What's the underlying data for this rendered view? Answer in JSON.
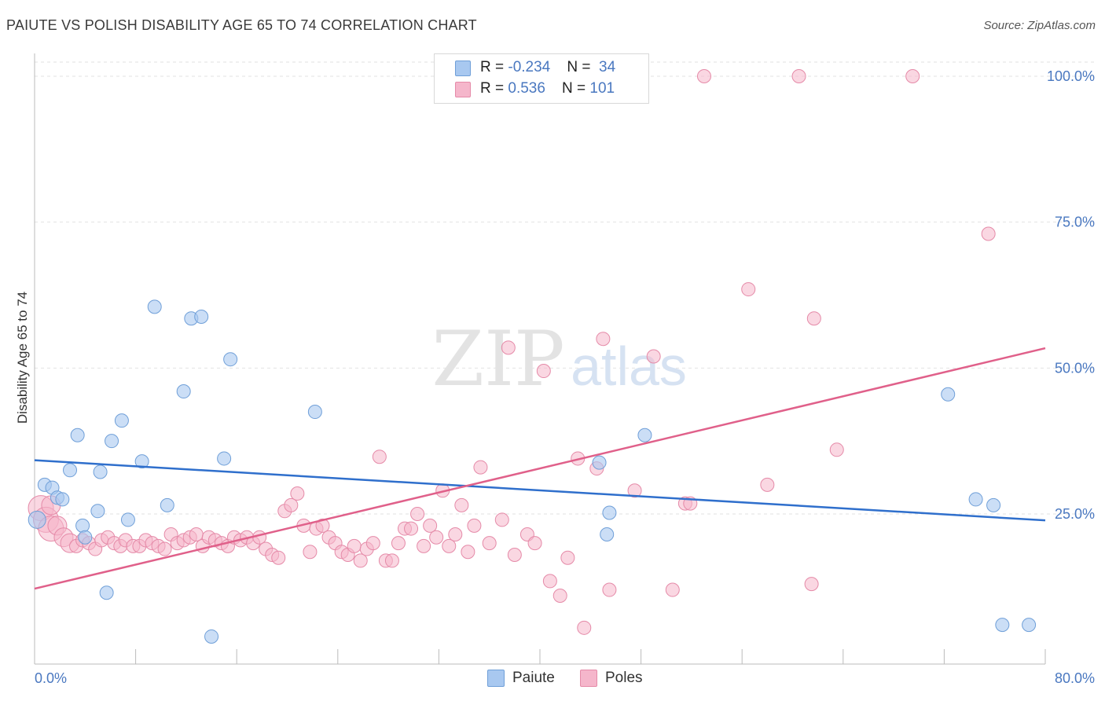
{
  "header": {
    "title": "PAIUTE VS POLISH DISABILITY AGE 65 TO 74 CORRELATION CHART",
    "source": "Source: ZipAtlas.com"
  },
  "watermark": {
    "zip": "ZIP",
    "atlas": "atlas"
  },
  "legend": {
    "paiute": {
      "r_label": "R = ",
      "r_value": "-0.234",
      "n_label": "N = ",
      "n_value": "34"
    },
    "poles": {
      "r_label": "R = ",
      "r_value": " 0.536",
      "n_label": "N = ",
      "n_value": "101"
    }
  },
  "colors": {
    "paiute_fill": "#a8c8f0",
    "paiute_stroke": "#6f9fd8",
    "paiute_line": "#2f6fcc",
    "poles_fill": "#f5b6cb",
    "poles_stroke": "#e58aa8",
    "poles_line": "#e0608a",
    "tick_text": "#4a78c0"
  },
  "chart_data": {
    "type": "scatter",
    "title": "PAIUTE VS POLISH DISABILITY AGE 65 TO 74 CORRELATION CHART",
    "xlabel": "",
    "ylabel": "Disability Age 65 to 74",
    "xlim": [
      0,
      80
    ],
    "ylim": [
      0,
      100
    ],
    "x_tick_labels": [
      "0.0%",
      "80.0%"
    ],
    "y_ticks": [
      25,
      50,
      75,
      100
    ],
    "y_tick_labels": [
      "25.0%",
      "50.0%",
      "75.0%",
      "100.0%"
    ],
    "legend_bottom": [
      "Paiute",
      "Poles"
    ],
    "series": [
      {
        "name": "Paiute",
        "r": -0.234,
        "n": 34,
        "trend": {
          "x": [
            0,
            80
          ],
          "y": [
            34.2,
            23.9
          ]
        },
        "points": [
          [
            0.2,
            24.0
          ],
          [
            0.8,
            30.0
          ],
          [
            1.4,
            29.5
          ],
          [
            1.8,
            27.8
          ],
          [
            2.2,
            27.5
          ],
          [
            2.8,
            32.5
          ],
          [
            3.4,
            38.5
          ],
          [
            3.8,
            23.0
          ],
          [
            4.0,
            21.0
          ],
          [
            5.0,
            25.5
          ],
          [
            5.2,
            32.2
          ],
          [
            5.7,
            11.5
          ],
          [
            6.1,
            37.5
          ],
          [
            6.9,
            41.0
          ],
          [
            7.4,
            24.0
          ],
          [
            8.5,
            34.0
          ],
          [
            9.5,
            60.5
          ],
          [
            10.5,
            26.5
          ],
          [
            11.8,
            46.0
          ],
          [
            12.4,
            58.5
          ],
          [
            13.2,
            58.8
          ],
          [
            14.0,
            4.0
          ],
          [
            15.0,
            34.5
          ],
          [
            15.5,
            51.5
          ],
          [
            22.2,
            42.5
          ],
          [
            44.7,
            33.8
          ],
          [
            45.3,
            21.5
          ],
          [
            45.5,
            25.2
          ],
          [
            48.3,
            38.5
          ],
          [
            72.3,
            45.5
          ],
          [
            74.5,
            27.5
          ],
          [
            75.9,
            26.5
          ],
          [
            76.6,
            6.0
          ],
          [
            78.7,
            6.0
          ]
        ]
      },
      {
        "name": "Poles",
        "r": 0.536,
        "n": 101,
        "trend": {
          "x": [
            0,
            80
          ],
          "y": [
            12.2,
            53.4
          ]
        },
        "points": [
          [
            0.5,
            26.0
          ],
          [
            0.9,
            24.0
          ],
          [
            1.3,
            22.5
          ],
          [
            1.8,
            23.0
          ],
          [
            2.3,
            21.0
          ],
          [
            2.8,
            20.0
          ],
          [
            3.3,
            19.5
          ],
          [
            3.8,
            20.5
          ],
          [
            4.3,
            20.0
          ],
          [
            4.8,
            19.0
          ],
          [
            5.3,
            20.5
          ],
          [
            5.8,
            21.0
          ],
          [
            6.3,
            20.0
          ],
          [
            6.8,
            19.5
          ],
          [
            7.2,
            20.5
          ],
          [
            7.8,
            19.5
          ],
          [
            8.3,
            19.5
          ],
          [
            8.8,
            20.5
          ],
          [
            9.3,
            20.0
          ],
          [
            9.8,
            19.5
          ],
          [
            10.3,
            19.0
          ],
          [
            10.8,
            21.5
          ],
          [
            11.3,
            20.0
          ],
          [
            11.8,
            20.5
          ],
          [
            12.3,
            21.0
          ],
          [
            12.8,
            21.5
          ],
          [
            13.3,
            19.5
          ],
          [
            13.8,
            21.0
          ],
          [
            14.3,
            20.5
          ],
          [
            14.8,
            20.0
          ],
          [
            15.3,
            19.5
          ],
          [
            15.8,
            21.0
          ],
          [
            16.3,
            20.5
          ],
          [
            16.8,
            21.0
          ],
          [
            17.3,
            20.0
          ],
          [
            17.8,
            21.0
          ],
          [
            18.3,
            19.0
          ],
          [
            18.8,
            18.0
          ],
          [
            19.3,
            17.5
          ],
          [
            19.8,
            25.5
          ],
          [
            20.3,
            26.5
          ],
          [
            20.8,
            28.5
          ],
          [
            21.3,
            23.0
          ],
          [
            21.8,
            18.5
          ],
          [
            22.3,
            22.5
          ],
          [
            22.8,
            23.0
          ],
          [
            23.3,
            21.0
          ],
          [
            23.8,
            20.0
          ],
          [
            24.3,
            18.5
          ],
          [
            24.8,
            18.0
          ],
          [
            25.3,
            19.5
          ],
          [
            25.8,
            17.0
          ],
          [
            26.3,
            19.0
          ],
          [
            26.8,
            20.0
          ],
          [
            27.3,
            34.8
          ],
          [
            27.8,
            17.0
          ],
          [
            28.3,
            17.0
          ],
          [
            28.8,
            20.0
          ],
          [
            29.3,
            22.5
          ],
          [
            29.8,
            22.5
          ],
          [
            30.3,
            25.0
          ],
          [
            30.8,
            19.5
          ],
          [
            31.3,
            23.0
          ],
          [
            31.8,
            21.0
          ],
          [
            32.3,
            29.0
          ],
          [
            32.8,
            19.5
          ],
          [
            33.3,
            21.5
          ],
          [
            33.8,
            26.5
          ],
          [
            34.3,
            18.5
          ],
          [
            34.8,
            23.0
          ],
          [
            35.3,
            33.0
          ],
          [
            36.0,
            20.0
          ],
          [
            37.0,
            24.0
          ],
          [
            37.5,
            53.5
          ],
          [
            38.0,
            18.0
          ],
          [
            39.0,
            21.5
          ],
          [
            39.6,
            20.0
          ],
          [
            40.3,
            49.5
          ],
          [
            40.8,
            13.5
          ],
          [
            41.6,
            11.0
          ],
          [
            42.2,
            17.5
          ],
          [
            43.0,
            34.5
          ],
          [
            43.5,
            5.5
          ],
          [
            44.5,
            32.8
          ],
          [
            45.0,
            55.0
          ],
          [
            45.5,
            12.0
          ],
          [
            47.5,
            29.0
          ],
          [
            49.0,
            52.0
          ],
          [
            50.5,
            12.0
          ],
          [
            51.5,
            26.8
          ],
          [
            51.9,
            26.8
          ],
          [
            53.0,
            100.0
          ],
          [
            56.5,
            63.5
          ],
          [
            58.0,
            30.0
          ],
          [
            60.5,
            100.0
          ],
          [
            61.5,
            13.0
          ],
          [
            61.7,
            58.5
          ],
          [
            63.5,
            36.0
          ],
          [
            69.5,
            100.0
          ],
          [
            75.5,
            73.0
          ],
          [
            1.3,
            26.5
          ]
        ]
      }
    ]
  }
}
